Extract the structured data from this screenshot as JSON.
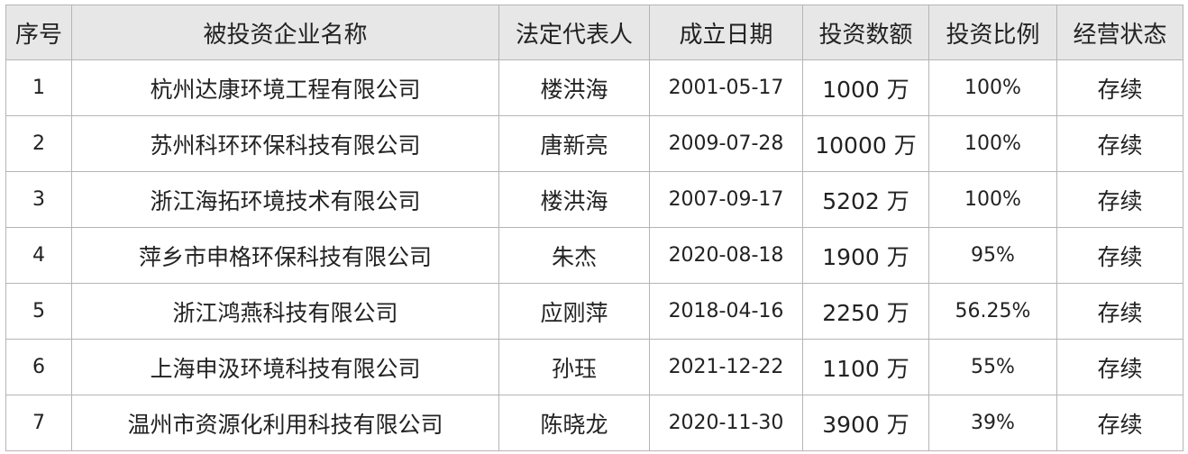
{
  "headers": [
    "序号",
    "被投资企业名称",
    "法定代表人",
    "成立日期",
    "投资数额",
    "投资比例",
    "经营状态"
  ],
  "rows": [
    [
      "1",
      "杭州达康环境工程有限公司",
      "楼洪海",
      "2001-05-17",
      "1000 万",
      "100%",
      "存续"
    ],
    [
      "2",
      "苏州科环环保科技有限公司",
      "唐新亮",
      "2009-07-28",
      "10000 万",
      "100%",
      "存续"
    ],
    [
      "3",
      "浙江海拓环境技术有限公司",
      "楼洪海",
      "2007-09-17",
      "5202 万",
      "100%",
      "存续"
    ],
    [
      "4",
      "萍乡市申格环保科技有限公司",
      "朱杰",
      "2020-08-18",
      "1900 万",
      "95%",
      "存续"
    ],
    [
      "5",
      "浙江鸿燕科技有限公司",
      "应刚萍",
      "2018-04-16",
      "2250 万",
      "56.25%",
      "存续"
    ],
    [
      "6",
      "上海申汲环境科技有限公司",
      "孙珏",
      "2021-12-22",
      "1100 万",
      "55%",
      "存续"
    ],
    [
      "7",
      "温州市资源化利用科技有限公司",
      "陈晓龙",
      "2020-11-30",
      "3900 万",
      "39%",
      "存续"
    ]
  ],
  "colors": {
    "header_bg": "#e7e7e7",
    "border": "#b5b5b5"
  }
}
